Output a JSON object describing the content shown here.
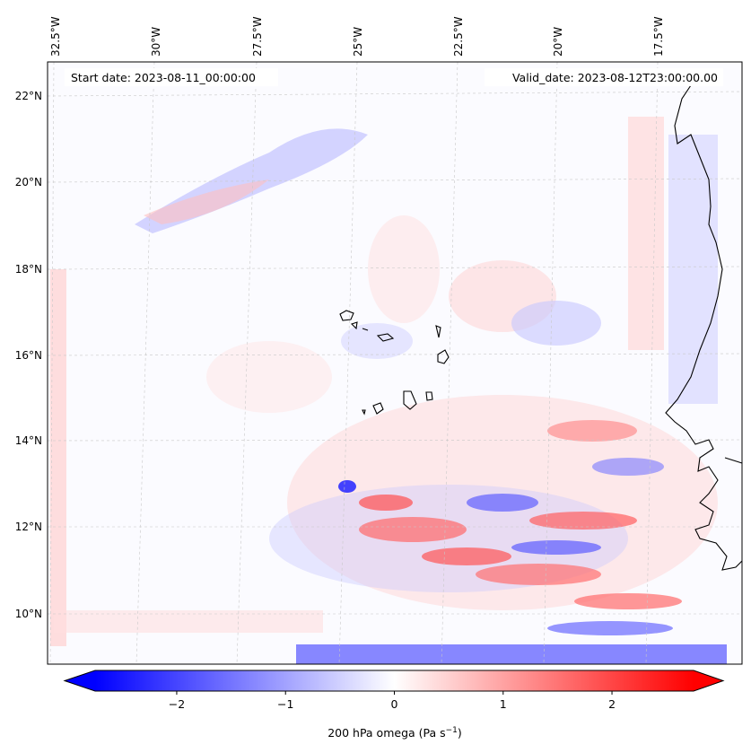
{
  "map": {
    "start_date": "Start date: 2023-08-11_00:00:00",
    "valid_date": "Valid_date: 2023-08-12T23:00:00.00",
    "lon_labels": [
      "32.5°W",
      "30°W",
      "27.5°W",
      "25°W",
      "22.5°W",
      "20°W",
      "17.5°W"
    ],
    "lat_labels": [
      "22°N",
      "20°N",
      "18°N",
      "16°N",
      "14°N",
      "12°N",
      "10°N"
    ],
    "coastline_color": "#000000",
    "gridline_style": "dashed-light-grey"
  },
  "colorbar": {
    "title_text": "200 hPa omega (Pa s",
    "title_unit_sup": "−1",
    "title_close": ")",
    "tick_labels": [
      "−2",
      "−1",
      "0",
      "1",
      "2"
    ],
    "tick_values": [
      -2,
      -1,
      0,
      1,
      2
    ],
    "vmin": -2.75,
    "vmax": 2.75,
    "extend": "both",
    "cmap": "bwr",
    "colors": {
      "low": "#0000ff",
      "mid": "#ffffff",
      "high": "#ff0000"
    }
  }
}
